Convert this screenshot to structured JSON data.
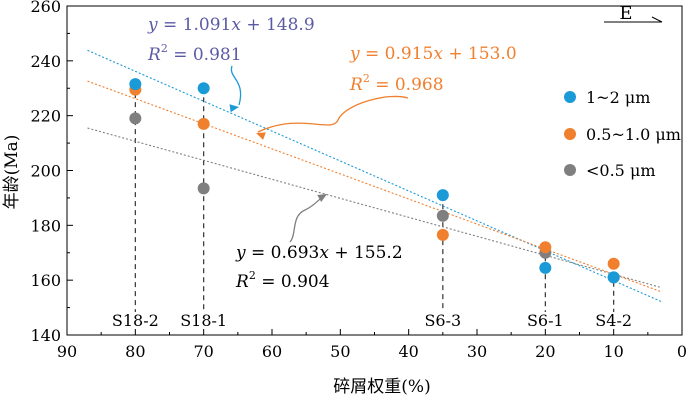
{
  "chart_data": {
    "type": "scatter",
    "xlabel": "碎屑权重(%)",
    "ylabel": "年龄(Ma)",
    "xlim": [
      90,
      0
    ],
    "ylim": [
      140,
      260
    ],
    "x_ticks": [
      90,
      80,
      70,
      60,
      50,
      40,
      30,
      20,
      10,
      0
    ],
    "y_ticks": [
      140,
      160,
      180,
      200,
      220,
      240,
      260
    ],
    "x_reversed": true,
    "grid": false,
    "legend_position": "right",
    "direction_label": "E",
    "samples": [
      {
        "label": "S18-2",
        "x": 80
      },
      {
        "label": "S18-1",
        "x": 70
      },
      {
        "label": "S6-3",
        "x": 35
      },
      {
        "label": "S6-1",
        "x": 20
      },
      {
        "label": "S4-2",
        "x": 10
      }
    ],
    "series": [
      {
        "name": "1~2 μm",
        "color": "#1a9ad6",
        "points": [
          [
            80,
            231.5
          ],
          [
            70,
            230
          ],
          [
            35,
            191
          ],
          [
            20,
            164.5
          ],
          [
            10,
            161
          ]
        ],
        "fit": {
          "slope": 1.091,
          "intercept": 148.9,
          "equation": "y = 1.091x + 148.9",
          "r2_text": "= 0.981"
        }
      },
      {
        "name": "0.5~1.0 μm",
        "color": "#f07f2e",
        "points": [
          [
            80,
            229.5
          ],
          [
            70,
            217
          ],
          [
            35,
            176.5
          ],
          [
            20,
            172
          ],
          [
            10,
            166
          ]
        ],
        "fit": {
          "slope": 0.915,
          "intercept": 153.0,
          "equation": "y = 0.915x + 153.0",
          "r2_text": "= 0.968"
        }
      },
      {
        "name": "<0.5 μm",
        "color": "#7f7f7f",
        "points": [
          [
            80,
            219
          ],
          [
            70,
            193.5
          ],
          [
            35,
            183.5
          ],
          [
            20,
            170
          ],
          [
            10,
            161
          ]
        ],
        "fit": {
          "slope": 0.693,
          "intercept": 155.2,
          "equation": "y = 0.693x + 155.2",
          "r2_text": "= 0.904"
        }
      }
    ]
  }
}
